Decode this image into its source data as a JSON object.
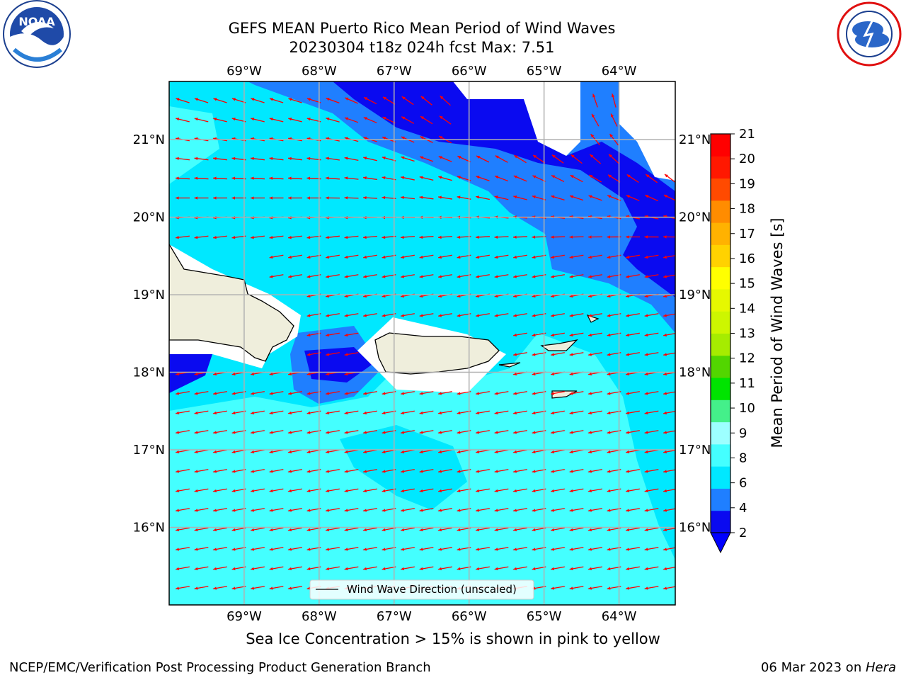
{
  "title": {
    "line1": "GEFS MEAN Puerto Rico Mean Period of Wind Waves",
    "line2": "20230304 t18z 024h fcst   Max: 7.51"
  },
  "map_extent": {
    "lon_min": -70.0,
    "lon_max": -63.25,
    "lat_min": 15.0,
    "lat_max": 21.75
  },
  "lon_ticks": [
    "69°W",
    "68°W",
    "67°W",
    "66°W",
    "65°W",
    "64°W"
  ],
  "lat_ticks": [
    "21°N",
    "20°N",
    "19°N",
    "18°N",
    "17°N",
    "16°N"
  ],
  "colorbar": {
    "label": "Mean Period of Wind Waves [s]",
    "ticks": [
      "2",
      "4",
      "6",
      "8",
      "9",
      "10",
      "11",
      "12",
      "13",
      "14",
      "15",
      "16",
      "17",
      "18",
      "19",
      "20",
      "21"
    ],
    "colors": [
      "#0a0af0",
      "#1f7fff",
      "#00e8ff",
      "#44ffff",
      "#9dffff",
      "#44f08a",
      "#00e400",
      "#52d600",
      "#a6ec00",
      "#cdf600",
      "#e6f800",
      "#ffff00",
      "#ffd200",
      "#ffb200",
      "#ff8c00",
      "#ff4a00",
      "#ff1800",
      "#ff0000"
    ],
    "extend_color": "#0000ff"
  },
  "legend": {
    "label": "Wind Wave Direction (unscaled)"
  },
  "subtitle": "Sea Ice Concentration > 15% is shown in pink to yellow",
  "footer": {
    "left": "NCEP/EMC/Verification Post Processing Product Generation Branch",
    "date": "06 Mar 2023 on ",
    "machine": "Hera"
  },
  "logos": {
    "left": "noaa-logo",
    "right": "nws-logo"
  },
  "colors": {
    "land": "#efeedc",
    "arrow": "#ff0000",
    "grid": "#b0b0b0"
  }
}
